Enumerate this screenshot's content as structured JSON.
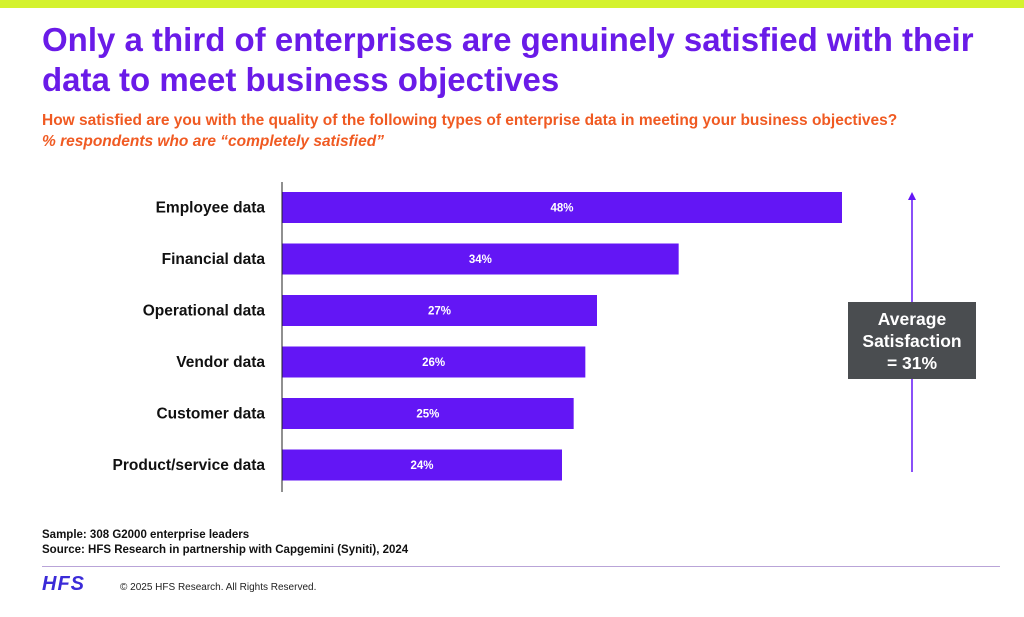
{
  "header": {
    "title": "Only a third of enterprises are genuinely satisfied with their data to meet business objectives",
    "question": "How satisfied are you with the quality of the following types of enterprise data in meeting your business objectives?",
    "subquestion": "% respondents who are “completely satisfied”"
  },
  "colors": {
    "accent_bar": "#d4f22e",
    "title": "#6a1be8",
    "question": "#f05a22",
    "bar": "#6316f5",
    "average_box": "#4a4d50"
  },
  "chart_data": {
    "type": "bar",
    "orientation": "horizontal",
    "categories": [
      "Employee data",
      "Financial data",
      "Operational data",
      "Vendor data",
      "Customer data",
      "Product/service data"
    ],
    "values": [
      48,
      34,
      27,
      26,
      25,
      24
    ],
    "value_labels": [
      "48%",
      "34%",
      "27%",
      "26%",
      "25%",
      "24%"
    ],
    "unit": "%",
    "xlim": [
      0,
      50
    ],
    "grid": false,
    "annotation": {
      "lines": [
        "Average",
        "Satisfaction",
        "= 31%"
      ],
      "value": 31
    }
  },
  "footer": {
    "sample": "Sample: 308 G2000 enterprise leaders",
    "source": "Source: HFS Research in partnership with Capgemini (Syniti), 2024",
    "logo": "HFS",
    "copyright": "© 2025 HFS Research. All Rights Reserved."
  }
}
